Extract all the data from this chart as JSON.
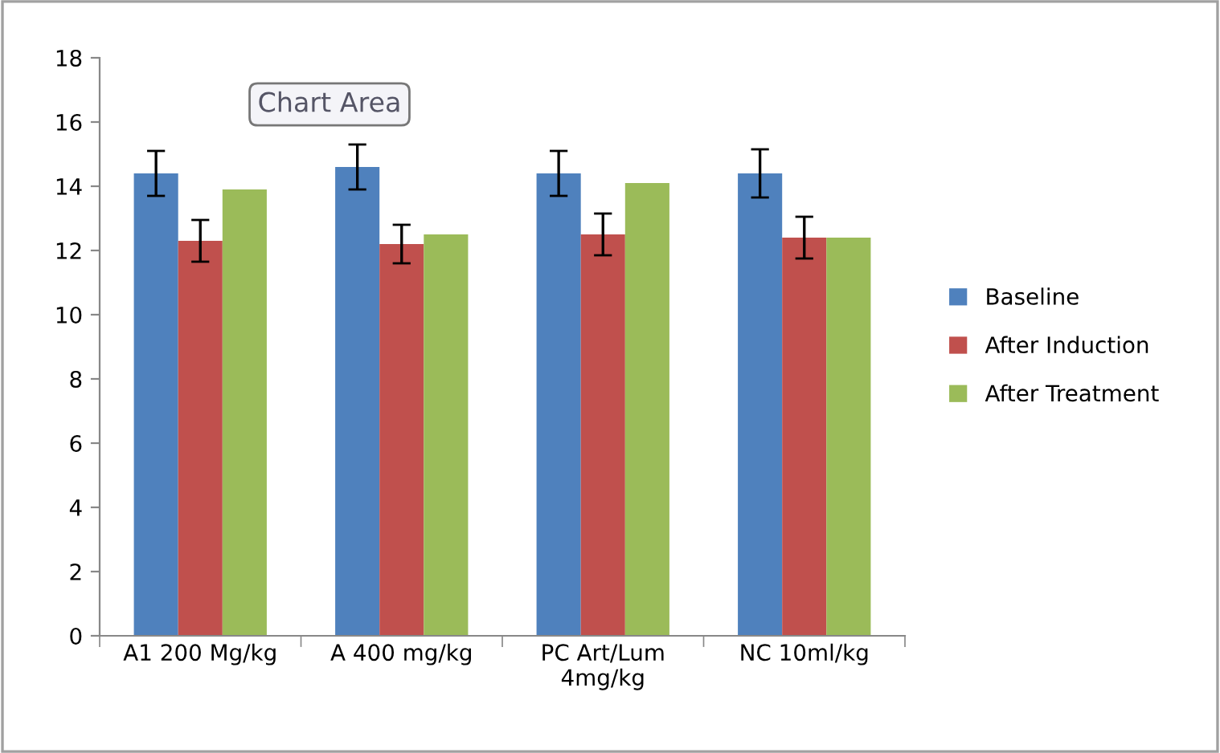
{
  "chart_data": {
    "type": "bar",
    "categories": [
      "A1 200 Mg/kg",
      "A 400 mg/kg",
      "PC Art/Lum\n4mg/kg",
      "NC 10ml/kg"
    ],
    "series": [
      {
        "name": "Baseline",
        "color": "#4f81bd",
        "values": [
          14.4,
          14.6,
          14.4,
          14.4
        ],
        "errors": [
          0.7,
          0.7,
          0.7,
          0.75
        ]
      },
      {
        "name": "After Induction",
        "color": "#c0504d",
        "values": [
          12.3,
          12.2,
          12.5,
          12.4
        ],
        "errors": [
          0.65,
          0.6,
          0.65,
          0.65
        ]
      },
      {
        "name": "After Treatment",
        "color": "#9bbb59",
        "values": [
          13.9,
          12.5,
          14.1,
          12.4
        ]
      }
    ],
    "ylim": [
      0,
      18
    ],
    "yticks": [
      0,
      2,
      4,
      6,
      8,
      10,
      12,
      14,
      16,
      18
    ],
    "grid": false,
    "legend": "right",
    "annotations": [
      "Chart Area"
    ]
  }
}
